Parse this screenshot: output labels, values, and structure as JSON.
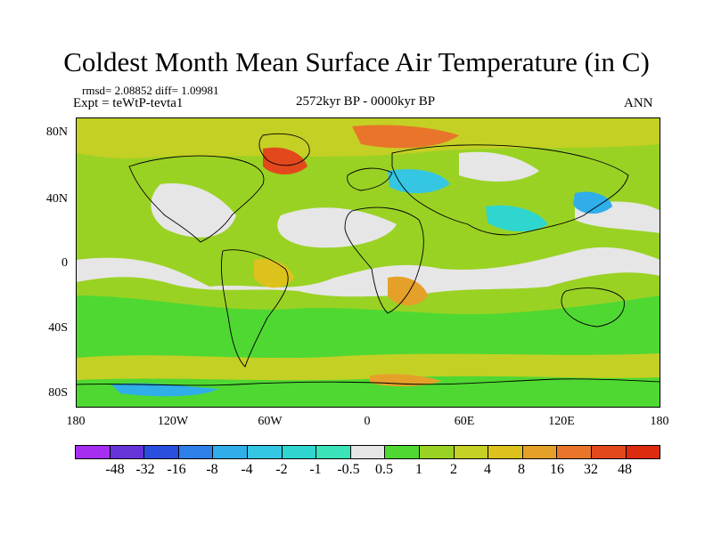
{
  "title": "Coldest Month Mean Surface Air Temperature (in C)",
  "stats": "rmsd= 2.08852 diff= 1.09981",
  "experiment": "Expt = teWtP-tevta1",
  "period": "2572kyr BP - 0000kyr BP",
  "season": "ANN",
  "map": {
    "projection": "cylindrical-equidistant",
    "lat_labels": [
      "80N",
      "40N",
      "0",
      "40S",
      "80S"
    ],
    "lon_labels": [
      "180",
      "120W",
      "60W",
      "0",
      "60E",
      "120E",
      "180"
    ],
    "background_color": "#9ad224"
  },
  "colorbar": {
    "labels": [
      "-48",
      "-32",
      "-16",
      "-8",
      "-4",
      "-2",
      "-1",
      "-0.5",
      "0.5",
      "1",
      "2",
      "4",
      "8",
      "16",
      "32",
      "48"
    ],
    "colors": [
      "#a52ef0",
      "#6633d9",
      "#2a4fe0",
      "#2f7fe8",
      "#2faeea",
      "#35c6e3",
      "#2fd6cf",
      "#3be3b8",
      "#e6e6e6",
      "#4fd832",
      "#9ad224",
      "#c4d024",
      "#ddc21d",
      "#e5a02a",
      "#e8752a",
      "#e3481c",
      "#dd2b10"
    ]
  }
}
